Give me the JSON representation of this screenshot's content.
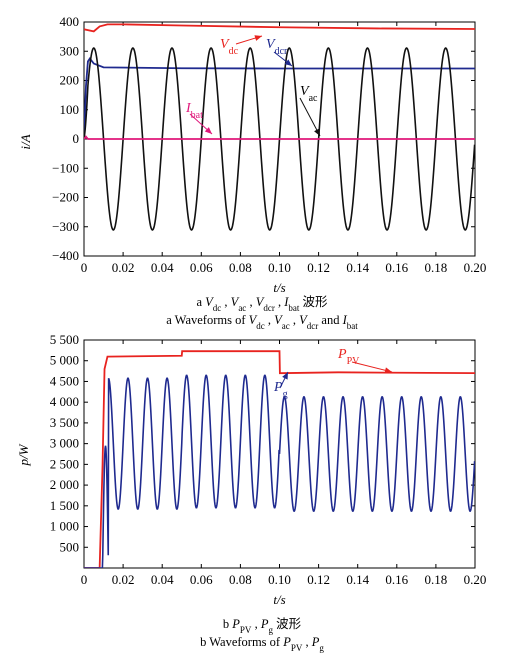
{
  "chart_data": [
    {
      "type": "line",
      "ylabel": "i/A",
      "xlabel": "t/s",
      "xlim": [
        0,
        0.2
      ],
      "ylim": [
        -400,
        400
      ],
      "x_ticks": [
        0.02,
        0.04,
        0.06,
        0.08,
        0.1,
        0.12,
        0.14,
        0.16,
        0.18,
        0.2
      ],
      "x_tick_labels": [
        "0",
        "0.02",
        "0.04",
        "0.06",
        "0.08",
        "0.10",
        "0.12",
        "0.14",
        "0.16",
        "0.18",
        "0.20"
      ],
      "y_tick_labels": [
        "−400",
        "−300",
        "−200",
        "−100",
        "0",
        "100",
        "200",
        "300",
        "400"
      ],
      "y_ticks": [
        -400,
        -300,
        -200,
        -100,
        0,
        100,
        200,
        300,
        400
      ],
      "caption_cn": "a V_dc, V_ac, V_dcr, I_bat 波形",
      "caption_en": "a Waveforms of V_dc, V_ac, V_dcr and I_bat",
      "caption_parts": {
        "cn_prefix": "a",
        "cn_suffix": "波形",
        "en_prefix": "a  Waveforms of",
        "and": "and"
      },
      "series": [
        {
          "name": "V_dc",
          "label_main": "V",
          "label_sub": "dc",
          "color": "#e8231f",
          "kind": "vdc",
          "points": [
            [
              0.0,
              375
            ],
            [
              0.005,
              368
            ],
            [
              0.008,
              385
            ],
            [
              0.012,
              392
            ],
            [
              0.02,
              392
            ],
            [
              0.05,
              388
            ],
            [
              0.1,
              382
            ],
            [
              0.15,
              378
            ],
            [
              0.2,
              376
            ]
          ]
        },
        {
          "name": "V_dcr",
          "label_main": "V",
          "label_sub": "dcr",
          "color": "#1f2a8f",
          "kind": "vdcr",
          "points": [
            [
              0.0,
              0
            ],
            [
              0.001,
              180
            ],
            [
              0.002,
              265
            ],
            [
              0.003,
              275
            ],
            [
              0.005,
              258
            ],
            [
              0.01,
              245
            ],
            [
              0.05,
              242
            ],
            [
              0.1,
              241
            ],
            [
              0.2,
              241
            ]
          ]
        },
        {
          "name": "V_ac",
          "label_main": "V",
          "label_sub": "ac",
          "color": "#111111",
          "kind": "sine",
          "amplitude": 311,
          "frequency": 50,
          "phase_deg": 0
        },
        {
          "name": "I_bat",
          "label_main": "I",
          "label_sub": "bat",
          "color": "#e0177a",
          "kind": "ibat",
          "points": [
            [
              0.0,
              0
            ],
            [
              0.001,
              8
            ],
            [
              0.002,
              0
            ],
            [
              0.2,
              0
            ]
          ]
        }
      ]
    },
    {
      "type": "line",
      "ylabel": "p/W",
      "xlabel": "t/s",
      "xlim": [
        0,
        0.2
      ],
      "ylim": [
        0,
        5500
      ],
      "x_ticks": [
        0.02,
        0.04,
        0.06,
        0.08,
        0.1,
        0.12,
        0.14,
        0.16,
        0.18,
        0.2
      ],
      "x_tick_labels": [
        "0",
        "0.02",
        "0.04",
        "0.06",
        "0.08",
        "0.10",
        "0.12",
        "0.14",
        "0.16",
        "0.18",
        "0.20"
      ],
      "y_ticks": [
        500,
        1000,
        1500,
        2000,
        2500,
        3000,
        3500,
        4000,
        4500,
        5000,
        5500
      ],
      "y_tick_labels": [
        "500",
        "1 000",
        "1 500",
        "2 000",
        "2 500",
        "3 000",
        "3 500",
        "4 000",
        "4 500",
        "5 000",
        "5 500"
      ],
      "caption_cn": "b P_PV, P_g 波形",
      "caption_en": "b Waveforms of P_PV, P_g",
      "caption_parts": {
        "cn_prefix": "b",
        "cn_suffix": "波形",
        "en_prefix": "b  Waveforms of"
      },
      "series": [
        {
          "name": "P_PV",
          "label_main": "P",
          "label_sub": "PV",
          "color": "#e8231f",
          "kind": "ppv",
          "points": [
            [
              0.0,
              0
            ],
            [
              0.008,
              0
            ],
            [
              0.0095,
              2500
            ],
            [
              0.0105,
              4800
            ],
            [
              0.012,
              5100
            ],
            [
              0.05,
              5120
            ],
            [
              0.0502,
              5230
            ],
            [
              0.1,
              5230
            ],
            [
              0.1002,
              4700
            ],
            [
              0.13,
              4720
            ],
            [
              0.2,
              4700
            ]
          ]
        },
        {
          "name": "P_g",
          "label_main": "P",
          "label_sub": "g",
          "color": "#1f2a8f",
          "kind": "pg",
          "segments": [
            {
              "t0": 0.0125,
              "t1": 0.05,
              "mean": 3000,
              "amp": 1580
            },
            {
              "t0": 0.05,
              "t1": 0.1,
              "mean": 3050,
              "amp": 1600
            },
            {
              "t0": 0.1,
              "t1": 0.2,
              "mean": 2750,
              "amp": 1380
            }
          ],
          "frequency": 100
        }
      ]
    }
  ]
}
